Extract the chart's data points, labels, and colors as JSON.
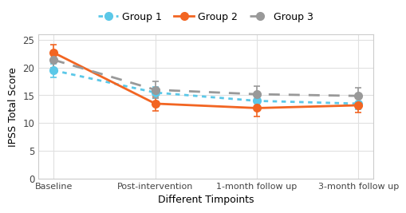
{
  "timepoints": [
    "Baseline",
    "Post-intervention",
    "1-month follow up",
    "3-month follow up"
  ],
  "group1": {
    "label": "Group 1",
    "values": [
      19.5,
      15.5,
      14.0,
      13.5
    ],
    "errors": [
      1.2,
      1.0,
      1.0,
      1.0
    ],
    "color": "#5BC8E8",
    "linestyle": "dotted",
    "marker": "o"
  },
  "group2": {
    "label": "Group 2",
    "values": [
      22.7,
      13.5,
      12.7,
      13.2
    ],
    "errors": [
      1.5,
      1.3,
      1.5,
      1.3
    ],
    "color": "#F26522",
    "linestyle": "solid",
    "marker": "o"
  },
  "group3": {
    "label": "Group 3",
    "values": [
      21.4,
      16.0,
      15.2,
      14.9
    ],
    "errors": [
      1.5,
      1.5,
      1.5,
      1.5
    ],
    "color": "#999999",
    "linestyle": "dashed",
    "marker": "o"
  },
  "xlabel": "Different Timpoints",
  "ylabel": "IPSS Total Score",
  "ylim": [
    0,
    26
  ],
  "yticks": [
    0,
    5,
    10,
    15,
    20,
    25
  ],
  "plot_bg": "#ffffff",
  "fig_bg": "#ffffff",
  "grid_color": "#e0e0e0",
  "capsize": 3,
  "marker_size": 7,
  "linewidth": 2.0
}
